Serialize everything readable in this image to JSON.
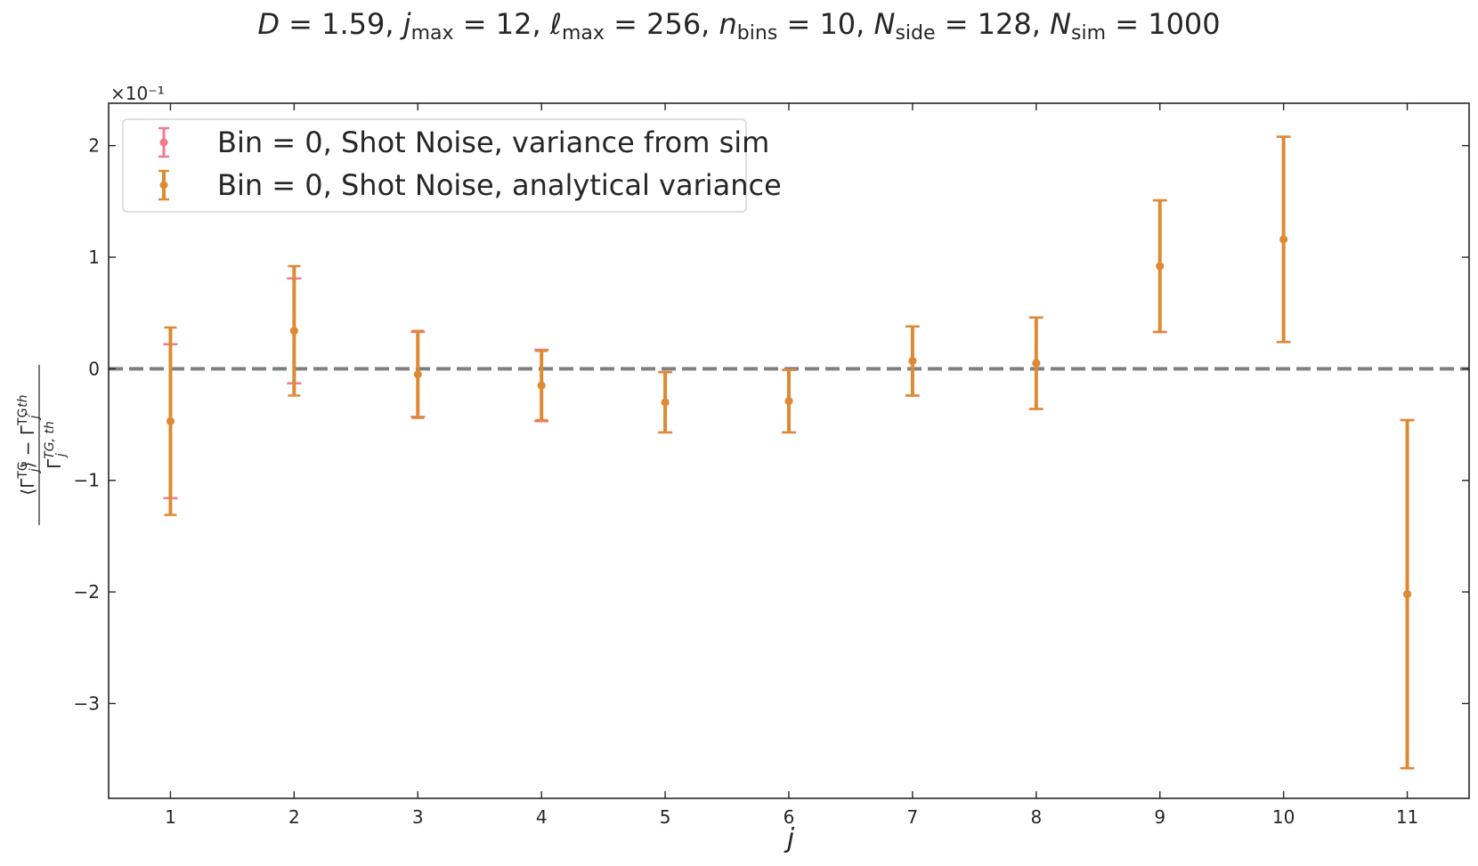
{
  "chart_data": {
    "type": "scatter",
    "title_parts": [
      {
        "text": "D",
        "style": "italic"
      },
      {
        "text": " = 1.59,  "
      },
      {
        "text": "j",
        "style": "italic"
      },
      {
        "text": "max",
        "sub": true
      },
      {
        "text": " = 12,  "
      },
      {
        "text": "ℓ",
        "style": "italic"
      },
      {
        "text": "max",
        "sub": true
      },
      {
        "text": " = 256,  "
      },
      {
        "text": "n",
        "style": "italic"
      },
      {
        "text": "bins",
        "sub": true
      },
      {
        "text": " = 10,  "
      },
      {
        "text": "N",
        "style": "italic"
      },
      {
        "text": "side",
        "sub": true
      },
      {
        "text": " = 128, "
      },
      {
        "text": "N",
        "style": "italic"
      },
      {
        "text": "sim",
        "sub": true
      },
      {
        "text": " = 1000"
      }
    ],
    "xlabel": "j",
    "ylabel_numerator": "⟨Γ_j^TG⟩ − Γ_j^TG,th",
    "ylabel_denominator": "Γ_j^TG,th",
    "y_scale_label": "×10⁻¹",
    "x_ticks": [
      "1",
      "2",
      "3",
      "4",
      "5",
      "6",
      "7",
      "8",
      "9",
      "10",
      "11"
    ],
    "y_ticks": [
      {
        "value": 2,
        "label": "2"
      },
      {
        "value": 1,
        "label": "1"
      },
      {
        "value": 0,
        "label": "0"
      },
      {
        "value": -1,
        "label": "−1"
      },
      {
        "value": -2,
        "label": "−2"
      },
      {
        "value": -3,
        "label": "−3"
      }
    ],
    "xlim": [
      0.5,
      11.5
    ],
    "ylim": [
      -3.85,
      2.38
    ],
    "reference_line": {
      "y": 0,
      "style": "dashed",
      "color": "#808080"
    },
    "legend_position": "upper-left",
    "series": [
      {
        "name": "Bin = 0, Shot Noise, variance from sim",
        "color": "#f07a8e",
        "x": [
          1,
          2,
          3,
          4,
          5,
          6,
          7,
          8,
          9,
          10,
          11
        ],
        "y": [
          -0.47,
          0.34,
          -0.05,
          -0.15,
          -0.3,
          -0.29,
          0.07,
          0.05,
          0.92,
          1.16,
          -2.02
        ],
        "err": [
          0.69,
          0.47,
          0.38,
          0.32,
          0.27,
          0.28,
          0.31,
          0.41,
          0.59,
          0.92,
          1.56
        ]
      },
      {
        "name": "Bin = 0, Shot Noise, analytical variance",
        "color": "#de8a32",
        "x": [
          1,
          2,
          3,
          4,
          5,
          6,
          7,
          8,
          9,
          10,
          11
        ],
        "y": [
          -0.47,
          0.34,
          -0.05,
          -0.15,
          -0.3,
          -0.29,
          0.07,
          0.05,
          0.92,
          1.16,
          -2.02
        ],
        "err": [
          0.84,
          0.58,
          0.39,
          0.31,
          0.27,
          0.28,
          0.31,
          0.41,
          0.59,
          0.92,
          1.56
        ]
      }
    ]
  }
}
